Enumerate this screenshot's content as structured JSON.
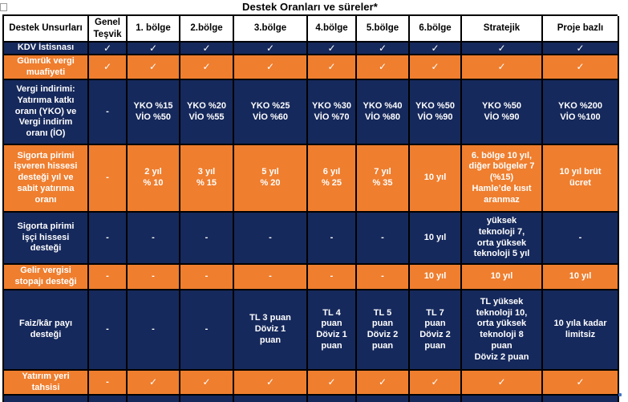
{
  "title": "Destek Oranları ve süreler*",
  "colors": {
    "navy": "#16295c",
    "orange": "#ef7e2e",
    "border": "#000000",
    "header_bg": "#ffffff",
    "header_text": "#000000",
    "cell_text": "#ffffff"
  },
  "columns": [
    "Destek Unsurları",
    "Genel Teşvik",
    "1. bölge",
    "2.bölge",
    "3.bölge",
    "4.bölge",
    "5.bölge",
    "6.bölge",
    "Stratejik",
    "Proje bazlı"
  ],
  "rows": [
    {
      "label": "KDV İstisnası",
      "theme": "navy",
      "cells": [
        "✓",
        "✓",
        "✓",
        "✓",
        "✓",
        "✓",
        "✓",
        "✓",
        "✓"
      ]
    },
    {
      "label": "Gümrük vergi\nmuafiyeti",
      "theme": "orange",
      "cells": [
        "✓",
        "✓",
        "✓",
        "✓",
        "✓",
        "✓",
        "✓",
        "✓",
        "✓"
      ]
    },
    {
      "label": "Vergi indirimi:\nYatırıma katkı\noranı (YKO) ve\nVergi indirim\noranı (İO)",
      "theme": "navy",
      "cells": [
        "-",
        "YKO %15\nVİO %50",
        "YKO %20\nVİO %55",
        "YKO %25\nVİO %60",
        "YKO %30\nVİO %70",
        "YKO %40\nVİO %80",
        "YKO %50\nVİO %90",
        "YKO %50\nVİO %90",
        "YKO %200\nVİO %100"
      ]
    },
    {
      "label": "Sigorta pirimi\nişveren hissesi\ndesteği  yıl ve\nsabit yatırıma\noranı",
      "theme": "orange",
      "cells": [
        "-",
        "2 yıl\n%  10",
        "3 yıl\n% 15",
        "5 yıl\n% 20",
        "6 yıl\n% 25",
        "7 yıl\n% 35",
        "10 yıl",
        "6. bölge 10 yıl,\ndiğer bölgeler 7\n(%15)\nHamle’de kısıt\naranmaz",
        "10 yıl brüt\nücret"
      ]
    },
    {
      "label": "Sigorta pirimi\nişçi hissesi\ndesteği",
      "theme": "navy",
      "cells": [
        "-",
        "-",
        "-",
        "-",
        "-",
        "-",
        "10 yıl",
        "yüksek\nteknoloji 7,\norta yüksek\nteknoloji 5 yıl",
        "-"
      ]
    },
    {
      "label": "Gelir vergisi\nstopajı desteği",
      "theme": "orange",
      "cells": [
        "-",
        "-",
        "-",
        "-",
        "-",
        "-",
        "10 yıl",
        "10 yıl",
        "10 yıl"
      ]
    },
    {
      "label": "Faiz/kâr payı\ndesteği",
      "theme": "navy",
      "cells": [
        "-",
        "-",
        "-",
        "TL 3 puan\nDöviz 1\npuan",
        "TL 4\npuan\nDöviz 1\npuan",
        "TL 5\npuan\nDöviz 2\npuan",
        "TL  7\npuan\nDöviz 2\npuan",
        "TL yüksek\nteknoloji 10,\norta yüksek\nteknoloji 8\npuan\nDöviz  2 puan",
        "10 yıla kadar\nlimitsiz"
      ]
    },
    {
      "label": "Yatırım yeri\ntahsisi",
      "theme": "orange",
      "cells": [
        "-",
        "✓",
        "✓",
        "✓",
        "✓",
        "✓",
        "✓",
        "✓",
        "✓"
      ]
    },
    {
      "label": "",
      "theme": "navy",
      "cells": [
        "",
        "",
        "",
        "",
        "",
        "",
        "",
        "",
        ""
      ]
    }
  ]
}
